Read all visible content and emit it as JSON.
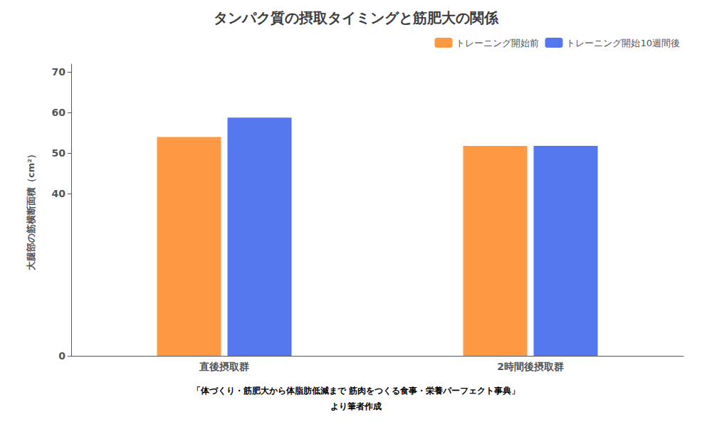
{
  "chart_data": {
    "type": "bar",
    "title": "タンパク質の摂取タイミングと筋肥大の関係",
    "categories": [
      "直後摂取群",
      "2時間後摂取群"
    ],
    "series": [
      {
        "name": "トレーニング開始前",
        "color": "#FF9944",
        "values": [
          54.0,
          51.8
        ]
      },
      {
        "name": "トレーニング開始10週間後",
        "color": "#5577EE",
        "values": [
          58.8,
          51.8
        ]
      }
    ],
    "ylabel": "大腿部の筋横断面積（cm²）",
    "ylim": [
      0,
      72
    ],
    "yticks": [
      0,
      40,
      50,
      60,
      70
    ],
    "grid": false,
    "legend": "upper right",
    "annotations": [
      "「体づくり・筋肥大から体脂肪低減まで 筋肉をつくる食事・栄養パーフェクト事典」",
      "より筆者作成"
    ]
  }
}
